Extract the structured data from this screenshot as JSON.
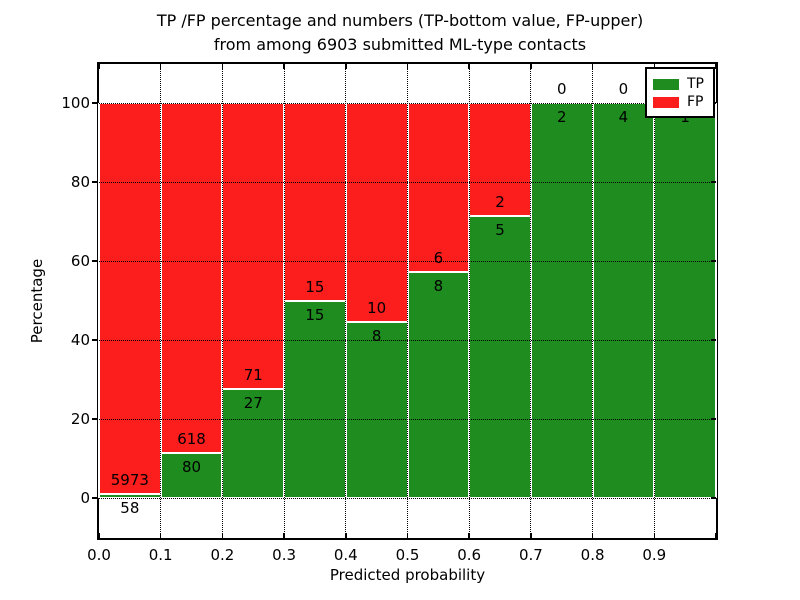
{
  "figure": {
    "title_line1": "TP /FP percentage and numbers (TP-bottom value, FP-upper)",
    "title_line2": "from among 6903 submitted ML-type contacts",
    "xlabel": "Predicted probability",
    "ylabel": "Percentage"
  },
  "legend": {
    "items": [
      {
        "label": "TP",
        "color": "#1e8c1e"
      },
      {
        "label": "FP",
        "color": "#fc1d1d"
      }
    ]
  },
  "chart_data": {
    "type": "bar",
    "subtype": "stacked-percentage",
    "title": "TP /FP percentage and numbers (TP-bottom value, FP-upper) from among 6903 submitted ML-type contacts",
    "xlabel": "Predicted probability",
    "ylabel": "Percentage",
    "total_contacts": 6903,
    "bin_edges": [
      0.0,
      0.1,
      0.2,
      0.3,
      0.4,
      0.5,
      0.6,
      0.7,
      0.8,
      0.9,
      1.0
    ],
    "xtick_labels": [
      "0.0",
      "0.1",
      "0.2",
      "0.3",
      "0.4",
      "0.5",
      "0.6",
      "0.7",
      "0.8",
      "0.9"
    ],
    "ytick_labels": [
      0,
      20,
      40,
      60,
      80,
      100
    ],
    "ylim": [
      -10,
      110
    ],
    "grid": "dotted",
    "legend_position": "upper right",
    "annotation_note": "TP count below segment boundary, FP count above",
    "series": [
      {
        "name": "TP",
        "stack_position": "bottom",
        "color": "#1e8c1e",
        "counts": [
          58,
          80,
          27,
          15,
          8,
          8,
          5,
          2,
          4,
          1
        ]
      },
      {
        "name": "FP",
        "stack_position": "top",
        "color": "#fc1d1d",
        "counts": [
          5973,
          618,
          71,
          15,
          10,
          6,
          2,
          0,
          0,
          0
        ]
      }
    ],
    "tp_percent_by_bin": [
      0.96,
      11.46,
      27.55,
      50.0,
      44.44,
      57.14,
      71.43,
      100.0,
      100.0,
      100.0
    ]
  }
}
